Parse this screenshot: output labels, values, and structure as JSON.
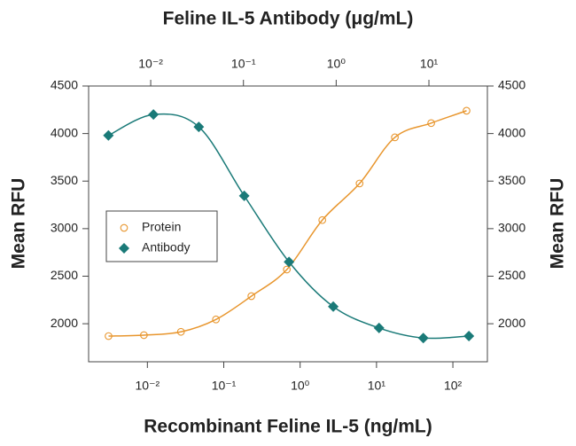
{
  "chart_data": {
    "type": "scatter",
    "title": "Feline IL-5 Antibody (μg/mL)",
    "xlabel": "Recombinant Feline IL-5 (ng/mL)",
    "ylabel": "Mean RFU",
    "y2label": "Mean RFU",
    "xscale": "log",
    "xlim": [
      0.0017,
      283
    ],
    "xticks": [
      {
        "value": 0.01,
        "label": "10⁻²"
      },
      {
        "value": 0.1,
        "label": "10⁻¹"
      },
      {
        "value": 1,
        "label": "10⁰"
      },
      {
        "value": 10,
        "label": "10¹"
      },
      {
        "value": 100,
        "label": "10²"
      }
    ],
    "x2lim": [
      0.00214,
      42.7
    ],
    "x2ticks": [
      {
        "value": 0.01,
        "label": "10⁻²"
      },
      {
        "value": 0.1,
        "label": "10⁻¹"
      },
      {
        "value": 1,
        "label": "10⁰"
      },
      {
        "value": 10,
        "label": "10¹"
      }
    ],
    "ylim": [
      1600,
      4500
    ],
    "yticks": [
      2000,
      2500,
      3000,
      3500,
      4000,
      4500
    ],
    "y2lim": [
      1600,
      4500
    ],
    "y2ticks": [
      2000,
      2500,
      3000,
      3500,
      4000,
      4500
    ],
    "legend": "middle-left",
    "series": [
      {
        "name": "Protein",
        "color": "#e8962e",
        "marker": "circle",
        "x": [
          0.0031,
          0.009,
          0.0275,
          0.079,
          0.23,
          0.67,
          1.95,
          6.0,
          17.4,
          52,
          151
        ],
        "values": [
          1870,
          1880,
          1915,
          2045,
          2290,
          2570,
          3090,
          3475,
          3960,
          4110,
          4240
        ]
      },
      {
        "name": "Antibody",
        "color": "#1a7a78",
        "marker": "diamond",
        "axis": "x2",
        "x": [
          0.0035,
          0.0107,
          0.033,
          0.102,
          0.31,
          0.93,
          2.9,
          8.7,
          27
        ],
        "values": [
          3980,
          4200,
          4070,
          3345,
          2650,
          2180,
          1955,
          1850,
          1870
        ]
      }
    ]
  }
}
